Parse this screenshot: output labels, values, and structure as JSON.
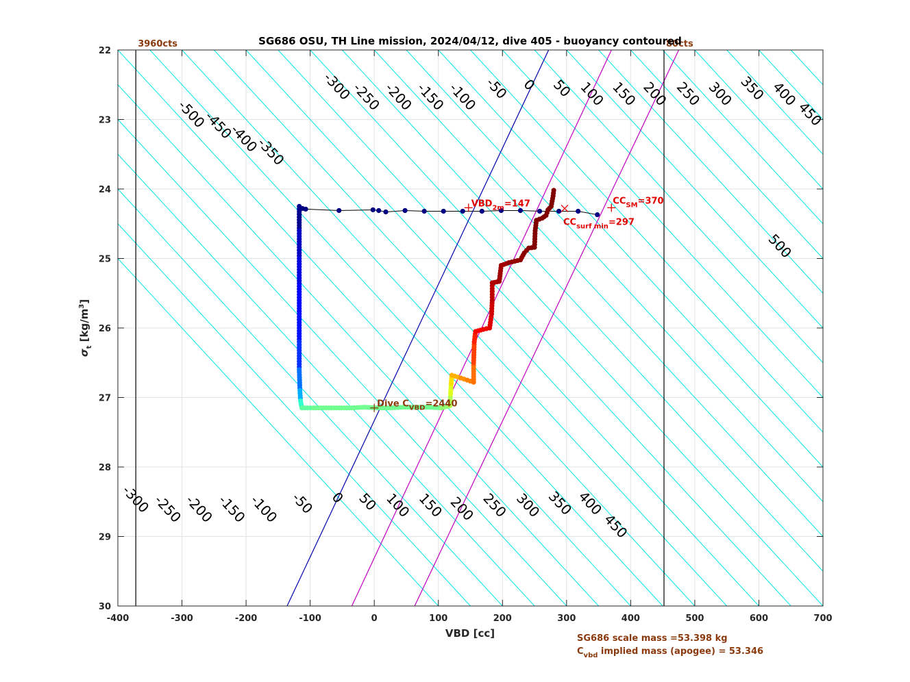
{
  "chart_data": {
    "type": "scatter",
    "title": "SG686 OSU, TH Line mission, 2024/04/12, dive 405 - buoyancy contoured",
    "xlabel": "VBD [cc]",
    "ylabel_main": "σ",
    "ylabel_sub": "t",
    "ylabel_rest": " [kg/m",
    "ylabel_sup": "3",
    "ylabel_end": "]",
    "xlim": [
      -400,
      700
    ],
    "ylim": [
      22,
      30
    ],
    "y_reversed": true,
    "xticks": [
      -400,
      -300,
      -200,
      -100,
      0,
      100,
      200,
      300,
      400,
      500,
      600,
      700
    ],
    "yticks": [
      22,
      23,
      24,
      25,
      26,
      27,
      28,
      29,
      30
    ],
    "grid": true,
    "contours": {
      "color": "#00e5e5",
      "slope_cc_per_sigma": 100,
      "values": [
        -700,
        -650,
        -600,
        -550,
        -500,
        -450,
        -400,
        -350,
        -300,
        -250,
        -200,
        -150,
        -100,
        -50,
        0,
        50,
        100,
        150,
        200,
        250,
        300,
        350,
        400,
        450,
        500,
        550,
        600,
        650,
        700,
        750,
        800
      ],
      "top_labels": [
        {
          "text": "-500",
          "x": -285,
          "y": 22.92
        },
        {
          "text": "-450",
          "x": -243,
          "y": 23.08
        },
        {
          "text": "-400",
          "x": -203,
          "y": 23.27
        },
        {
          "text": "-350",
          "x": -161,
          "y": 23.46
        },
        {
          "text": "-300",
          "x": -58,
          "y": 22.52
        },
        {
          "text": "-250",
          "x": -12,
          "y": 22.67
        },
        {
          "text": "-200",
          "x": 38,
          "y": 22.67
        },
        {
          "text": "-150",
          "x": 88,
          "y": 22.67
        },
        {
          "text": "-100",
          "x": 138,
          "y": 22.67
        },
        {
          "text": "-50",
          "x": 191,
          "y": 22.55
        },
        {
          "text": "0",
          "x": 242,
          "y": 22.5
        },
        {
          "text": "50",
          "x": 293,
          "y": 22.55
        },
        {
          "text": "100",
          "x": 340,
          "y": 22.63
        },
        {
          "text": "150",
          "x": 390,
          "y": 22.63
        },
        {
          "text": "200",
          "x": 438,
          "y": 22.63
        },
        {
          "text": "250",
          "x": 490,
          "y": 22.63
        },
        {
          "text": "300",
          "x": 540,
          "y": 22.63
        },
        {
          "text": "350",
          "x": 590,
          "y": 22.55
        },
        {
          "text": "400",
          "x": 640,
          "y": 22.63
        },
        {
          "text": "450",
          "x": 680,
          "y": 22.92
        },
        {
          "text": "500",
          "x": 633,
          "y": 24.82
        }
      ],
      "bottom_labels": [
        {
          "text": "-300",
          "x": -372,
          "y": 28.46
        },
        {
          "text": "-250",
          "x": -322,
          "y": 28.6
        },
        {
          "text": "-200",
          "x": -273,
          "y": 28.6
        },
        {
          "text": "-150",
          "x": -222,
          "y": 28.6
        },
        {
          "text": "-100",
          "x": -172,
          "y": 28.6
        },
        {
          "text": "-50",
          "x": -112,
          "y": 28.52
        },
        {
          "text": "0",
          "x": -57,
          "y": 28.44
        },
        {
          "text": "50",
          "x": -10,
          "y": 28.5
        },
        {
          "text": "100",
          "x": 37,
          "y": 28.55
        },
        {
          "text": "150",
          "x": 88,
          "y": 28.55
        },
        {
          "text": "200",
          "x": 137,
          "y": 28.6
        },
        {
          "text": "250",
          "x": 188,
          "y": 28.55
        },
        {
          "text": "300",
          "x": 240,
          "y": 28.55
        },
        {
          "text": "350",
          "x": 290,
          "y": 28.52
        },
        {
          "text": "400",
          "x": 337,
          "y": 28.52
        },
        {
          "text": "450",
          "x": 377,
          "y": 28.85
        }
      ]
    },
    "zero_line": {
      "color": "#0000aa",
      "points": [
        [
          -136,
          30
        ],
        [
          272,
          22
        ]
      ]
    },
    "magenta_lines": [
      {
        "color": "#c000c0",
        "points": [
          [
            -35,
            30
          ],
          [
            370,
            22
          ]
        ]
      },
      {
        "color": "#c000c0",
        "points": [
          [
            63,
            30
          ],
          [
            475,
            22
          ]
        ]
      }
    ],
    "vertical_limits": [
      {
        "x": -372,
        "label": "3960cts",
        "color": "#000000"
      },
      {
        "x": 452,
        "label": "80cts",
        "color": "#000000"
      }
    ],
    "climb_series": {
      "name": "",
      "color": "#000080",
      "line_color": "#000000",
      "points": [
        [
          -112,
          24.28
        ],
        [
          -107,
          24.29
        ],
        [
          -55,
          24.31
        ],
        [
          -2,
          24.3
        ],
        [
          7,
          24.31
        ],
        [
          18,
          24.33
        ],
        [
          48,
          24.31
        ],
        [
          78,
          24.32
        ],
        [
          108,
          24.32
        ],
        [
          138,
          24.32
        ],
        [
          168,
          24.32
        ],
        [
          198,
          24.31
        ],
        [
          228,
          24.31
        ],
        [
          258,
          24.32
        ],
        [
          288,
          24.32
        ],
        [
          318,
          24.32
        ],
        [
          348,
          24.37
        ]
      ]
    },
    "descent_series": {
      "name": "",
      "cmap": "jet",
      "points": [
        [
          -117,
          24.25
        ],
        [
          -117,
          24.6
        ],
        [
          -117,
          25.0
        ],
        [
          -117,
          25.4
        ],
        [
          -117,
          25.8
        ],
        [
          -117,
          26.2
        ],
        [
          -117,
          26.6
        ],
        [
          -116,
          26.9
        ],
        [
          -115,
          27.05
        ],
        [
          -113,
          27.15
        ],
        [
          -95,
          27.15
        ],
        [
          -75,
          27.15
        ],
        [
          -55,
          27.15
        ],
        [
          -35,
          27.15
        ],
        [
          -15,
          27.14
        ],
        [
          5,
          27.15
        ],
        [
          25,
          27.15
        ],
        [
          45,
          27.14
        ],
        [
          65,
          27.14
        ],
        [
          85,
          27.14
        ],
        [
          105,
          27.15
        ],
        [
          118,
          27.12
        ],
        [
          119,
          26.95
        ],
        [
          120,
          26.8
        ],
        [
          121,
          26.68
        ],
        [
          135,
          26.72
        ],
        [
          145,
          26.75
        ],
        [
          155,
          26.78
        ],
        [
          155,
          26.5
        ],
        [
          156,
          26.2
        ],
        [
          158,
          26.05
        ],
        [
          170,
          26.02
        ],
        [
          180,
          26.0
        ],
        [
          183,
          25.8
        ],
        [
          184,
          25.6
        ],
        [
          184,
          25.35
        ],
        [
          195,
          25.33
        ],
        [
          198,
          25.1
        ],
        [
          210,
          25.06
        ],
        [
          228,
          25.02
        ],
        [
          234,
          24.92
        ],
        [
          241,
          24.85
        ],
        [
          250,
          24.84
        ],
        [
          251,
          24.6
        ],
        [
          253,
          24.45
        ],
        [
          262,
          24.42
        ],
        [
          268,
          24.38
        ],
        [
          271,
          24.3
        ],
        [
          276,
          24.25
        ],
        [
          279,
          24.1
        ],
        [
          280,
          24.02
        ]
      ],
      "colors": [
        "#00008f",
        "#0000c0",
        "#0000e0",
        "#0000ff",
        "#0010ff",
        "#0030ff",
        "#0070ff",
        "#00b0ff",
        "#30ffd0",
        "#60ffa0",
        "#70ff90",
        "#70ff90",
        "#70ff90",
        "#70ff90",
        "#70ff90",
        "#70ff90",
        "#70ff90",
        "#70ff90",
        "#70ff90",
        "#70ff90",
        "#90ff70",
        "#b0ff50",
        "#e0ff20",
        "#ffe000",
        "#ffb000",
        "#ff9000",
        "#ff8000",
        "#ff7000",
        "#ff4000",
        "#ff2000",
        "#ff0000",
        "#f00000",
        "#e00000",
        "#d00000",
        "#c00000",
        "#b00000",
        "#a00000",
        "#a00000",
        "#950000",
        "#900000",
        "#8a0000",
        "#850000",
        "#820000",
        "#800000",
        "#800000",
        "#800000",
        "#800000",
        "#800000",
        "#800000",
        "#800000",
        "#800000"
      ]
    },
    "markers": [
      {
        "label": "VBD",
        "sub": "2m",
        "value": "=147",
        "x": 147,
        "y": 24.27,
        "symbol": "+",
        "color": "#e00000"
      },
      {
        "label": "CC",
        "sub": "surf min",
        "value": "=297",
        "x": 297,
        "y": 24.28,
        "symbol": "x",
        "color": "#e00000"
      },
      {
        "label": "CC",
        "sub": "SM",
        "value": "=370",
        "x": 370,
        "y": 24.27,
        "symbol": "+",
        "color": "#e00000"
      },
      {
        "label": "Dive C",
        "sub": "VBD",
        "value": "=2440",
        "x": 0,
        "y": 27.15,
        "symbol": "+",
        "color": "#8B3A0E"
      }
    ],
    "footer_notes": [
      {
        "text": "SG686 scale mass =53.398 kg"
      },
      {
        "main": "C",
        "sub": "vbd",
        "rest": " implied mass (apogee) = 53.346"
      }
    ]
  }
}
